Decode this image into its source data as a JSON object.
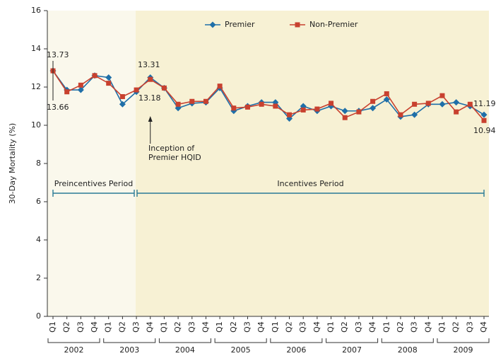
{
  "chart_data": {
    "type": "line",
    "y_label": "30-Day Mortality (%)",
    "categories": [
      "Q1",
      "Q2",
      "Q3",
      "Q4",
      "Q1",
      "Q2",
      "Q3",
      "Q4",
      "Q1",
      "Q2",
      "Q3",
      "Q4",
      "Q1",
      "Q2",
      "Q3",
      "Q4",
      "Q1",
      "Q2",
      "Q3",
      "Q4",
      "Q1",
      "Q2",
      "Q3",
      "Q4",
      "Q1",
      "Q2",
      "Q3",
      "Q4",
      "Q1",
      "Q2",
      "Q3",
      "Q4"
    ],
    "years": [
      "2002",
      "2003",
      "2004",
      "2005",
      "2006",
      "2007",
      "2008",
      "2009"
    ],
    "series": [
      {
        "name": "Premier",
        "color": "#1f6fa8",
        "marker": "diamond",
        "values": [
          12.85,
          11.85,
          11.85,
          12.6,
          12.5,
          11.1,
          11.75,
          12.5,
          11.95,
          10.9,
          11.15,
          11.2,
          11.95,
          10.75,
          11.0,
          11.2,
          11.2,
          10.35,
          11.0,
          10.75,
          11.0,
          10.75,
          10.75,
          10.9,
          11.35,
          10.45,
          10.55,
          11.1,
          11.1,
          11.2,
          11.0,
          10.55
        ]
      },
      {
        "name": "Non-Premier",
        "color": "#c8412f",
        "marker": "square",
        "values": [
          12.85,
          11.75,
          12.1,
          12.6,
          12.2,
          11.5,
          11.85,
          12.4,
          11.95,
          11.1,
          11.25,
          11.25,
          12.05,
          10.9,
          10.95,
          11.1,
          11.0,
          10.55,
          10.8,
          10.85,
          11.15,
          10.4,
          10.7,
          11.25,
          11.65,
          10.55,
          11.1,
          11.15,
          11.55,
          10.7,
          11.1,
          10.25
        ]
      }
    ],
    "ylim": [
      0,
      16
    ],
    "yticks": [
      0,
      2,
      4,
      6,
      8,
      10,
      12,
      14,
      16
    ],
    "annotations": [
      "13.73",
      "13.66",
      "13.31",
      "13.18",
      "11.19",
      "10.94"
    ],
    "inception": [
      "Inception of",
      "Premier HQID"
    ],
    "periods": [
      "Preincentives Period",
      "Incentives Period"
    ]
  }
}
